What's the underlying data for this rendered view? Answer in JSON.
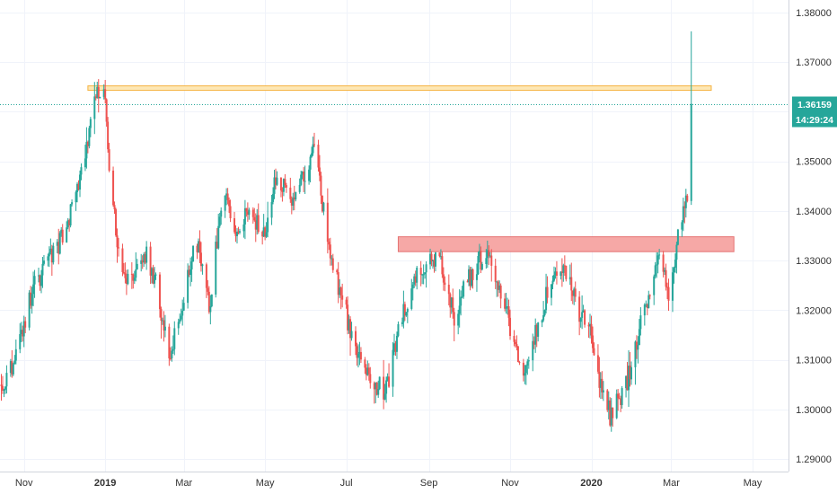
{
  "chart_data": {
    "type": "candlestick",
    "price_scale": {
      "ylim": [
        1.2875,
        1.3825
      ],
      "ticks": [
        "1.29000",
        "1.30000",
        "1.31000",
        "1.32000",
        "1.33000",
        "1.34000",
        "1.35000",
        "1.36000",
        "1.37000",
        "1.38000"
      ],
      "tick_values": [
        1.29,
        1.3,
        1.31,
        1.32,
        1.33,
        1.34,
        1.35,
        1.36,
        1.37,
        1.38
      ]
    },
    "time_scale": {
      "labels": [
        {
          "text": "Nov",
          "date": "2018-11-01",
          "bold": false
        },
        {
          "text": "2019",
          "date": "2019-01-01",
          "bold": true
        },
        {
          "text": "Mar",
          "date": "2019-03-01",
          "bold": false
        },
        {
          "text": "May",
          "date": "2019-05-01",
          "bold": false
        },
        {
          "text": "Jul",
          "date": "2019-07-01",
          "bold": false
        },
        {
          "text": "Sep",
          "date": "2019-09-01",
          "bold": false
        },
        {
          "text": "Nov",
          "date": "2019-11-01",
          "bold": false
        },
        {
          "text": "2020",
          "date": "2020-01-01",
          "bold": true
        },
        {
          "text": "Mar",
          "date": "2020-03-01",
          "bold": false
        },
        {
          "text": "May",
          "date": "2020-05-01",
          "bold": false
        }
      ],
      "x_range": [
        "2018-10-14",
        "2020-05-28"
      ]
    },
    "current_price": {
      "value": 1.36159,
      "label": "1.36159",
      "countdown": "14:29:24",
      "color": "#26a69a"
    },
    "colors": {
      "up": "#26a69a",
      "down": "#ef5350",
      "grid": "#f0f3fa"
    },
    "zones": [
      {
        "name": "resistance-zone",
        "x_start": "2018-12-19",
        "x_end": "2020-03-31",
        "y_low": 1.3643,
        "y_high": 1.3652,
        "fill": "#fde7b5",
        "stroke": "#f5b342"
      },
      {
        "name": "support-resistance-zone",
        "x_start": "2019-08-09",
        "x_end": "2020-04-17",
        "y_low": 1.3318,
        "y_high": 1.3348,
        "fill": "#f6a8a6",
        "stroke": "#e57373"
      }
    ],
    "anchors": [
      [
        "2018-10-15",
        1.305
      ],
      [
        "2018-10-25",
        1.31
      ],
      [
        "2018-11-08",
        1.325
      ],
      [
        "2018-11-20",
        1.33
      ],
      [
        "2018-12-01",
        1.335
      ],
      [
        "2018-12-12",
        1.345
      ],
      [
        "2018-12-24",
        1.362
      ],
      [
        "2018-12-31",
        1.365
      ],
      [
        "2019-01-05",
        1.345
      ],
      [
        "2019-01-12",
        1.33
      ],
      [
        "2019-01-22",
        1.325
      ],
      [
        "2019-02-01",
        1.332
      ],
      [
        "2019-02-08",
        1.325
      ],
      [
        "2019-02-18",
        1.31
      ],
      [
        "2019-02-28",
        1.322
      ],
      [
        "2019-03-10",
        1.335
      ],
      [
        "2019-03-20",
        1.32
      ],
      [
        "2019-03-30",
        1.344
      ],
      [
        "2019-04-10",
        1.336
      ],
      [
        "2019-04-20",
        1.34
      ],
      [
        "2019-05-01",
        1.335
      ],
      [
        "2019-05-10",
        1.348
      ],
      [
        "2019-05-20",
        1.342
      ],
      [
        "2019-05-31",
        1.348
      ],
      [
        "2019-06-07",
        1.352
      ],
      [
        "2019-06-15",
        1.338
      ],
      [
        "2019-06-22",
        1.328
      ],
      [
        "2019-06-30",
        1.32
      ],
      [
        "2019-07-10",
        1.31
      ],
      [
        "2019-07-20",
        1.305
      ],
      [
        "2019-07-31",
        1.304
      ],
      [
        "2019-08-10",
        1.318
      ],
      [
        "2019-08-20",
        1.325
      ],
      [
        "2019-08-31",
        1.33
      ],
      [
        "2019-09-10",
        1.33
      ],
      [
        "2019-09-15",
        1.324
      ],
      [
        "2019-09-20",
        1.318
      ],
      [
        "2019-09-30",
        1.326
      ],
      [
        "2019-10-08",
        1.33
      ],
      [
        "2019-10-15",
        1.331
      ],
      [
        "2019-10-22",
        1.325
      ],
      [
        "2019-10-31",
        1.318
      ],
      [
        "2019-11-10",
        1.308
      ],
      [
        "2019-11-20",
        1.315
      ],
      [
        "2019-11-30",
        1.325
      ],
      [
        "2019-12-08",
        1.33
      ],
      [
        "2019-12-15",
        1.326
      ],
      [
        "2019-12-22",
        1.32
      ],
      [
        "2019-12-31",
        1.315
      ],
      [
        "2020-01-08",
        1.305
      ],
      [
        "2020-01-15",
        1.299
      ],
      [
        "2020-01-22",
        1.302
      ],
      [
        "2020-01-31",
        1.308
      ],
      [
        "2020-02-08",
        1.318
      ],
      [
        "2020-02-15",
        1.326
      ],
      [
        "2020-02-22",
        1.332
      ],
      [
        "2020-02-25",
        1.328
      ],
      [
        "2020-02-28",
        1.324
      ],
      [
        "2020-03-04",
        1.33
      ],
      [
        "2020-03-08",
        1.338
      ],
      [
        "2020-03-11",
        1.342
      ],
      [
        "2020-03-13",
        1.34
      ],
      [
        "2020-03-16",
        1.3615
      ]
    ]
  }
}
